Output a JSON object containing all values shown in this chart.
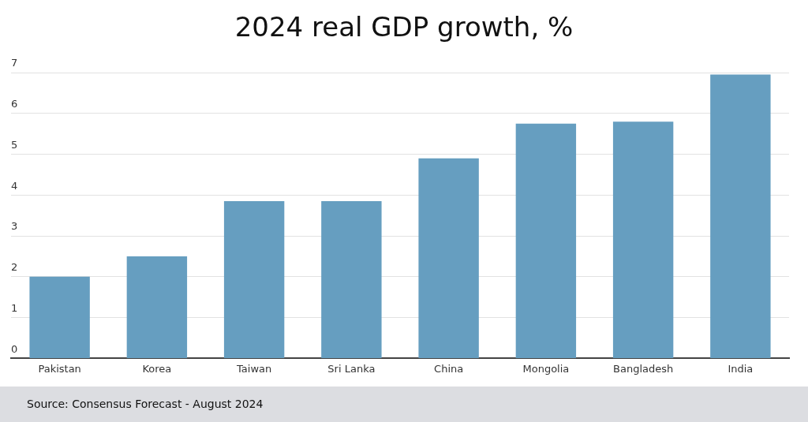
{
  "chart_data": {
    "type": "bar",
    "title": "2024 real GDP growth, %",
    "categories": [
      "Pakistan",
      "Korea",
      "Taiwan",
      "Sri Lanka",
      "China",
      "Mongolia",
      "Bangladesh",
      "India"
    ],
    "values": [
      2.0,
      2.5,
      3.85,
      3.85,
      4.9,
      5.75,
      5.8,
      6.95
    ],
    "color": "#669ec0",
    "ylim": [
      0,
      7
    ],
    "yticks": [
      0,
      1,
      2,
      3,
      4,
      5,
      6,
      7
    ],
    "grid": "y",
    "annotations": [
      "Source: Consensus Forecast - August 2024"
    ]
  }
}
